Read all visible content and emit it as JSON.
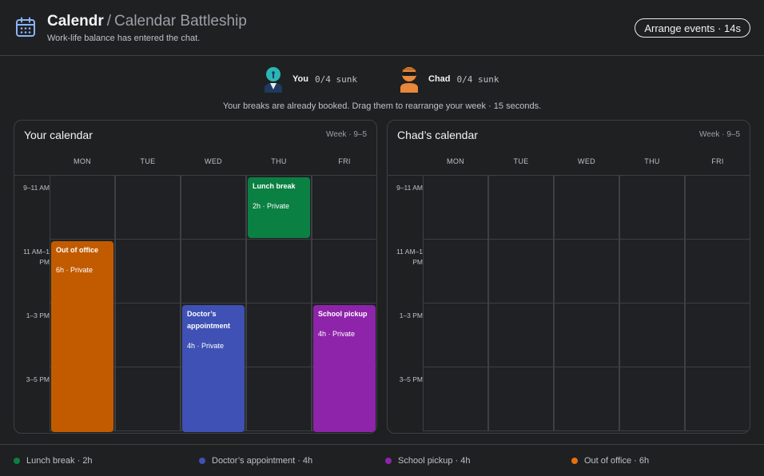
{
  "header": {
    "app_name": "Calendr",
    "separator": "/",
    "game_name": "Calendar Battleship",
    "subtitle": "Work-life balance has entered the chat.",
    "arrange_button": "Arrange events · 14s"
  },
  "players": [
    {
      "name": "You",
      "score": "0/4 sunk",
      "color": "#2bb6b6"
    },
    {
      "name": "Chad",
      "score": "0/4 sunk",
      "color": "#e8883a"
    }
  ],
  "instructions": "Your breaks are already booked. Drag them to rearrange your week · 15 seconds.",
  "calendars": [
    {
      "title": "Your calendar",
      "range": "Week · 9–5"
    },
    {
      "title": "Chad’s calendar",
      "range": "Week · 9–5"
    }
  ],
  "days": [
    "MON",
    "TUE",
    "WED",
    "THU",
    "FRI"
  ],
  "time_slots": [
    "9–11 AM",
    "11 AM–1 PM",
    "1–3 PM",
    "3–5 PM"
  ],
  "events": [
    {
      "title": "Lunch break",
      "meta": "2h · Private",
      "color": "#0b8043"
    },
    {
      "title": "Out of office",
      "meta": "6h · Private",
      "color": "#c25b00"
    },
    {
      "title": "Doctor’s appointment",
      "meta": "4h · Private",
      "color": "#3f51b5"
    },
    {
      "title": "School pickup",
      "meta": "4h · Private",
      "color": "#8e24aa"
    }
  ],
  "legend": [
    {
      "label": "Lunch break · 2h",
      "color": "#0b8043"
    },
    {
      "label": "Doctor’s appointment · 4h",
      "color": "#3f51b5"
    },
    {
      "label": "School pickup · 4h",
      "color": "#8e24aa"
    },
    {
      "label": "Out of office · 6h",
      "color": "#e8710a"
    }
  ],
  "colors": {
    "background": "#1f2022",
    "border": "#3c4043",
    "accent": "#8ab4f8"
  }
}
